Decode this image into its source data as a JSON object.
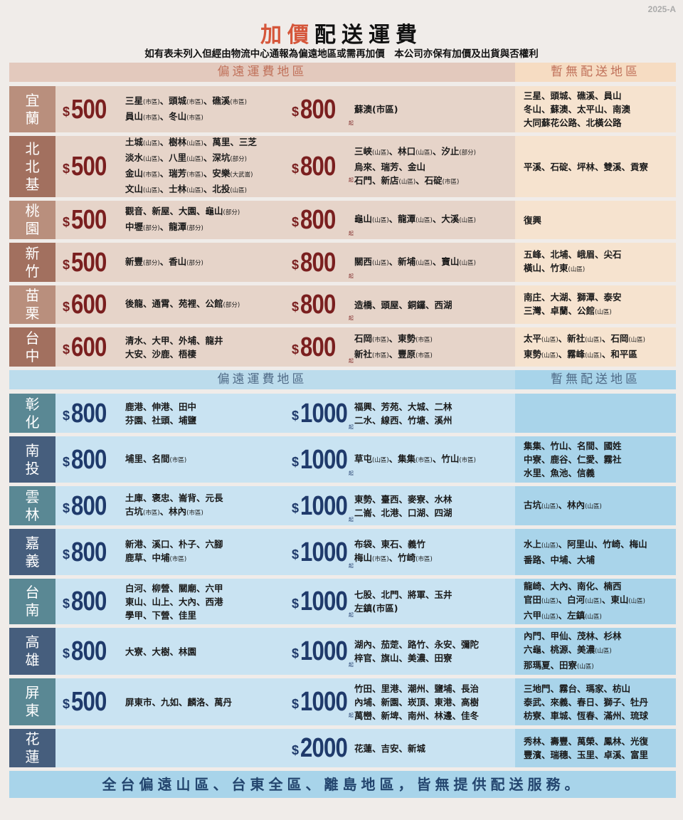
{
  "version": "2025-A",
  "title": {
    "accent": "加價",
    "rest": "配送運費"
  },
  "subtitle": "如有表未列入但經由物流中心通報為偏遠地區或需再加價　本公司亦保有加價及出貨與否權利",
  "colors": {
    "title_accent": "#d5563a",
    "north_price": "#7a1f1f",
    "south_price": "#1f3a6b",
    "north_header": "#c0715a",
    "south_header": "#4f6a86"
  },
  "sections": [
    {
      "header": "偏遠運費地區",
      "noship_header": "暫無配送地區",
      "rows": [
        {
          "region": "宜蘭",
          "tier1": {
            "price": "500",
            "lines": [
              "三星(市區)、頭城(市區)、礁溪(市區)",
              "員山(市區)、冬山(市區)"
            ]
          },
          "tier2": {
            "price": "800",
            "suffix": "起",
            "lines": [
              "蘇澳(市區)"
            ]
          },
          "noship": [
            "三星、頭城、礁溪、員山",
            "冬山、蘇澳、太平山、南澳",
            "大同蘇花公路、北橫公路"
          ]
        },
        {
          "region": "北北基",
          "tier1": {
            "price": "500",
            "lines": [
              "土城(山區)、樹林(山區)、萬里、三芝",
              "淡水(山區)、八里(山區)、深坑(部分)",
              "金山(市區)、瑞芳(市區)、安樂(大武崙)",
              "文山(山區)、士林(山區)、北投(山區)"
            ]
          },
          "tier2": {
            "price": "800",
            "suffix": "起",
            "lines": [
              "三峽(山區)、林口(山區)、汐止(部分)",
              "烏來、瑞芳、金山",
              "石門、新店(山區)、石碇(市區)"
            ]
          },
          "noship": [
            "平溪、石碇、坪林、雙溪、貢寮"
          ]
        },
        {
          "region": "桃園",
          "tier1": {
            "price": "500",
            "lines": [
              "觀音、新屋、大園、龜山(部分)",
              "中壢(部分)、龍潭(部分)"
            ]
          },
          "tier2": {
            "price": "800",
            "suffix": "起",
            "lines": [
              "龜山(山區)、龍潭(山區)、大溪(山區)"
            ]
          },
          "noship": [
            "復興"
          ]
        },
        {
          "region": "新竹",
          "tier1": {
            "price": "500",
            "lines": [
              "新豐(部分)、香山(部分)"
            ]
          },
          "tier2": {
            "price": "800",
            "suffix": "起",
            "lines": [
              "關西(山區)、新埔(山區)、寶山(山區)"
            ]
          },
          "noship": [
            "五峰、北埔、峨眉、尖石",
            "橫山、竹東(山區)"
          ]
        },
        {
          "region": "苗栗",
          "tier1": {
            "price": "600",
            "lines": [
              "後龍、通霄、苑裡、公館(部分)"
            ]
          },
          "tier2": {
            "price": "800",
            "suffix": "起",
            "lines": [
              "造橋、頭屋、銅鑼、西湖"
            ]
          },
          "noship": [
            "南庄、大湖、獅潭、泰安",
            "三灣、卓蘭、公館(山區)"
          ]
        },
        {
          "region": "台中",
          "tier1": {
            "price": "600",
            "lines": [
              "清水、大甲、外埔、龍井",
              "大安、沙鹿、梧棲"
            ]
          },
          "tier2": {
            "price": "800",
            "suffix": "起",
            "lines": [
              "石岡(市區)、東勢(市區)",
              "新社(市區)、豐原(市區)"
            ]
          },
          "noship": [
            "太平(山區)、新社(山區)、石岡(山區)",
            "東勢(山區)、霧峰(山區)、和平區"
          ]
        }
      ]
    },
    {
      "header": "偏遠運費地區",
      "noship_header": "暫無配送地區",
      "rows": [
        {
          "region": "彰化",
          "tier1": {
            "price": "800",
            "lines": [
              "鹿港、伸港、田中",
              "芬園、社頭、埔鹽"
            ]
          },
          "tier2": {
            "price": "1000",
            "suffix": "起",
            "lines": [
              "福興、芳苑、大城、二林",
              "二水、線西、竹塘、溪州"
            ]
          },
          "noship": []
        },
        {
          "region": "南投",
          "tier1": {
            "price": "800",
            "lines": [
              "埔里、名間(市區)"
            ]
          },
          "tier2": {
            "price": "1000",
            "suffix": "起",
            "lines": [
              "草屯(山區)、集集(市區)、竹山(市區)"
            ]
          },
          "noship": [
            "集集、竹山、名間、國姓",
            "中寮、鹿谷、仁愛、霧社",
            "水里、魚池、信義"
          ]
        },
        {
          "region": "雲林",
          "tier1": {
            "price": "800",
            "lines": [
              "土庫、褒忠、崙背、元長",
              "古坑(市區)、林內(市區)"
            ]
          },
          "tier2": {
            "price": "1000",
            "suffix": "起",
            "lines": [
              "東勢、臺西、麥寮、水林",
              "二崙、北港、口湖、四湖"
            ]
          },
          "noship": [
            "古坑(山區)、林內(山區)"
          ]
        },
        {
          "region": "嘉義",
          "tier1": {
            "price": "800",
            "lines": [
              "新港、溪口、朴子、六腳",
              "鹿草、中埔(市區)"
            ]
          },
          "tier2": {
            "price": "1000",
            "suffix": "起",
            "lines": [
              "布袋、東石、義竹",
              "梅山(市區)、竹崎(市區)"
            ]
          },
          "noship": [
            "水上(山區)、阿里山、竹崎、梅山",
            "番路、中埔、大埔"
          ]
        },
        {
          "region": "台南",
          "tier1": {
            "price": "800",
            "lines": [
              "白河、柳營、關廟、六甲",
              "東山、山上、大內、西港",
              "學甲、下營、佳里"
            ]
          },
          "tier2": {
            "price": "1000",
            "suffix": "起",
            "lines": [
              "七股、北門、將軍、玉井",
              "左鎮(市區)"
            ]
          },
          "noship": [
            "龍崎、大內、南化、楠西",
            "官田(山區)、白河(山區)、東山(山區)",
            "六甲(山區)、左鎮(山區)"
          ]
        },
        {
          "region": "高雄",
          "tier1": {
            "price": "800",
            "lines": [
              "大寮、大樹、林園"
            ]
          },
          "tier2": {
            "price": "1000",
            "suffix": "起",
            "lines": [
              "湖內、茄萣、路竹、永安、彌陀",
              "梓官、旗山、美濃、田寮"
            ]
          },
          "noship": [
            "內門、甲仙、茂林、杉林",
            "六龜、桃源、美濃(山區)",
            "那瑪夏、田寮(山區)"
          ]
        },
        {
          "region": "屏東",
          "tier1": {
            "price": "500",
            "lines": [
              "屏東市、九如、麟洛、萬丹"
            ]
          },
          "tier2": {
            "price": "1000",
            "suffix": "起",
            "lines": [
              "竹田、里港、潮州、鹽埔、長治",
              "內埔、新園、崁頂、東港、高樹",
              "萬巒、新埤、南州、林邊、佳冬"
            ]
          },
          "noship": [
            "三地門、霧台、瑪家、枋山",
            "泰武、來義、春日、獅子、牡丹",
            "枋寮、車城、恆春、滿州、琉球"
          ]
        },
        {
          "region": "花蓮",
          "tier1": null,
          "tier2": {
            "price": "2000",
            "suffix": "",
            "lines": [
              "花蓮、吉安、新城"
            ]
          },
          "noship": [
            "秀林、壽豐、萬榮、鳳林、光復",
            "豐濱、瑞穗、玉里、卓溪、富里"
          ]
        }
      ]
    }
  ],
  "footer": "全台偏遠山區、台東全區、離島地區，皆無提供配送服務。"
}
